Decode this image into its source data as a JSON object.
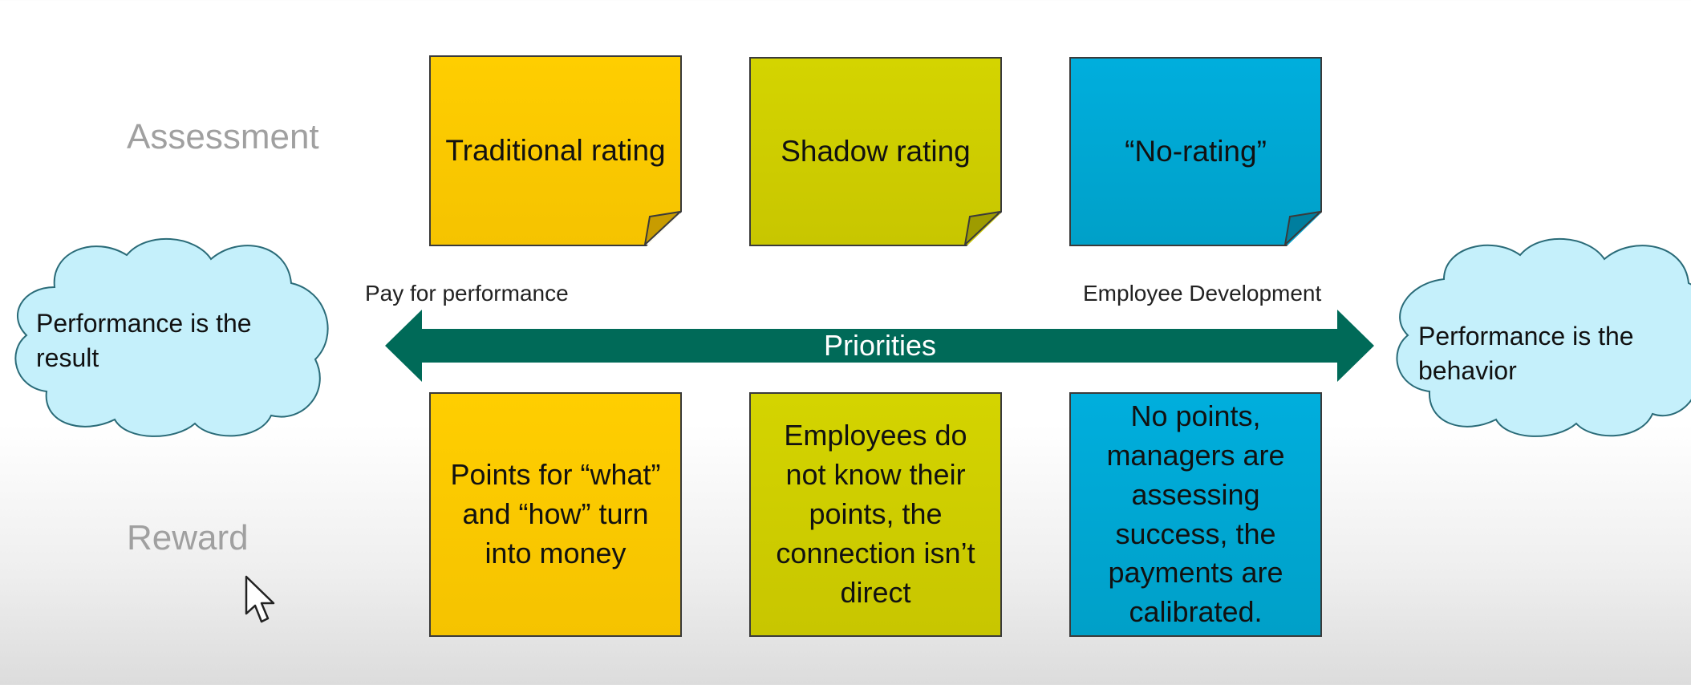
{
  "rows": {
    "assessment_label": "Assessment",
    "reward_label": "Reward"
  },
  "assessment_notes": [
    {
      "text": "Traditional rating",
      "color": "#ffce00"
    },
    {
      "text": "Shadow rating",
      "color": "#d4d400"
    },
    {
      "text": "“No-rating”",
      "color": "#00aedd"
    }
  ],
  "reward_notes": [
    {
      "text": "Points for “what” and “how” turn into money",
      "color": "#f5c300"
    },
    {
      "text": "Employees do not know their points, the connection isn’t direct",
      "color": "#c8c600"
    },
    {
      "text": "No points, managers are assessing success, the payments are calibrated.",
      "color": "#00a0c8"
    }
  ],
  "arrow": {
    "label": "Priorities",
    "left_label": "Pay for performance",
    "right_label": "Employee Development",
    "color": "#006a58"
  },
  "clouds": {
    "left": "Performance is the result",
    "right": "Performance is the behavior",
    "fill": "#c5f0fb"
  }
}
